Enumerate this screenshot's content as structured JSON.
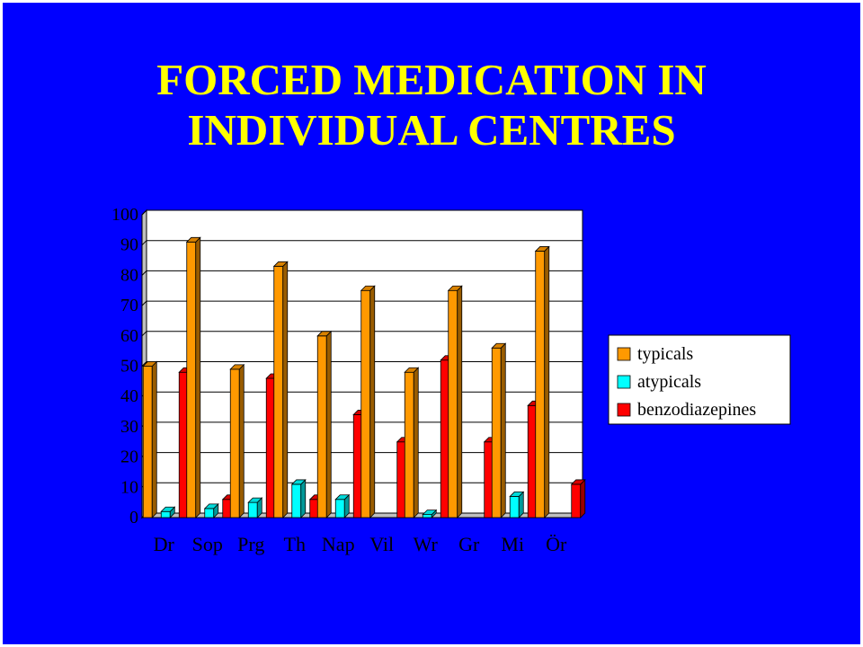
{
  "slide": {
    "title_line1": "FORCED MEDICATION IN",
    "title_line2": "INDIVIDUAL CENTRES",
    "background_color": "#0000ff",
    "title_color": "#ffff00"
  },
  "chart_data": {
    "type": "bar",
    "title": "",
    "xlabel": "",
    "ylabel": "",
    "ylim": [
      0,
      100
    ],
    "yticks": [
      0,
      10,
      20,
      30,
      40,
      50,
      60,
      70,
      80,
      90,
      100
    ],
    "grid": "horizontal",
    "legend_position": "right",
    "categories": [
      "Dr",
      "Sop",
      "Prg",
      "Th",
      "Nap",
      "Vil",
      "Wr",
      "Gr",
      "Mi",
      "Ör"
    ],
    "series": [
      {
        "name": "typicals",
        "color": "#ff9900",
        "values": [
          50,
          91,
          49,
          83,
          60,
          75,
          48,
          75,
          56,
          88
        ]
      },
      {
        "name": "atypicals",
        "color": "#00ffff",
        "values": [
          2,
          3,
          5,
          11,
          6,
          0,
          1,
          0,
          7,
          0
        ]
      },
      {
        "name": "benzodiazepines",
        "color": "#ff0000",
        "values": [
          48,
          6,
          46,
          6,
          34,
          25,
          52,
          25,
          37,
          11
        ]
      }
    ]
  }
}
